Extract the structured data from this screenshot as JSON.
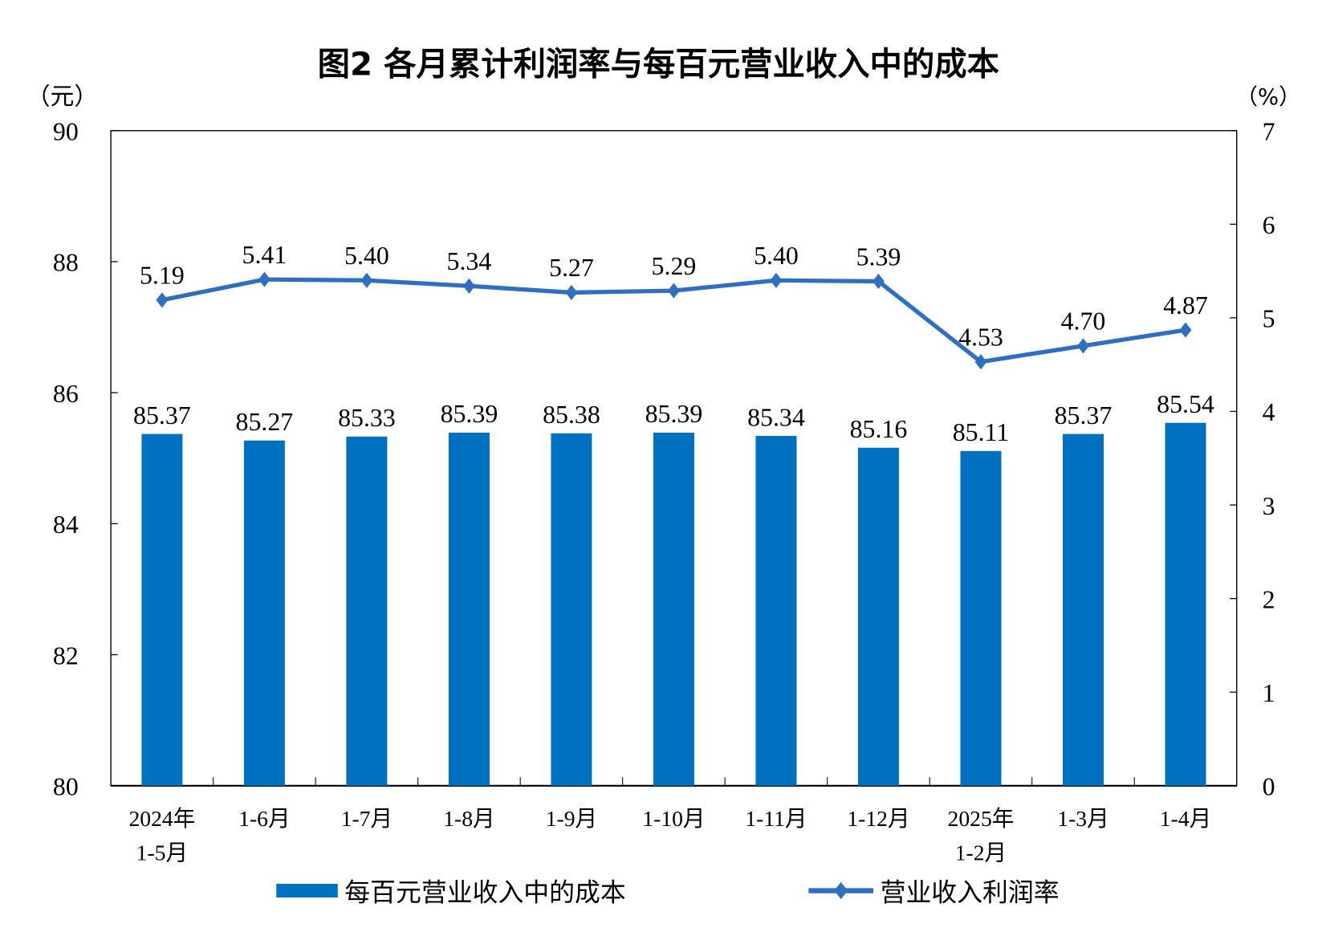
{
  "chart_data": {
    "type": "bar+line",
    "title": "图2  各月累计利润率与每百元营业收入中的成本",
    "left_axis": {
      "unit_label": "（元）",
      "ylim": [
        80,
        90
      ],
      "ticks": [
        "80",
        "82",
        "84",
        "86",
        "88",
        "90"
      ]
    },
    "right_axis": {
      "unit_label": "（%）",
      "ylim": [
        0,
        7
      ],
      "ticks": [
        "0",
        "1",
        "2",
        "3",
        "4",
        "5",
        "6",
        "7"
      ]
    },
    "categories": [
      [
        "2024年",
        "1-5月"
      ],
      [
        "1-6月"
      ],
      [
        "1-7月"
      ],
      [
        "1-8月"
      ],
      [
        "1-9月"
      ],
      [
        "1-10月"
      ],
      [
        "1-11月"
      ],
      [
        "1-12月"
      ],
      [
        "2025年",
        "1-2月"
      ],
      [
        "1-3月"
      ],
      [
        "1-4月"
      ]
    ],
    "series": [
      {
        "name": "每百元营业收入中的成本",
        "type": "bar",
        "axis": "left",
        "color": "#0070C0",
        "values": [
          85.37,
          85.27,
          85.33,
          85.39,
          85.38,
          85.39,
          85.34,
          85.16,
          85.11,
          85.37,
          85.54
        ],
        "labels": [
          "85.37",
          "85.27",
          "85.33",
          "85.39",
          "85.38",
          "85.39",
          "85.34",
          "85.16",
          "85.11",
          "85.37",
          "85.54"
        ]
      },
      {
        "name": "营业收入利润率",
        "type": "line",
        "axis": "right",
        "color": "#2E6FC0",
        "marker": "diamond",
        "values": [
          5.19,
          5.41,
          5.4,
          5.34,
          5.27,
          5.29,
          5.4,
          5.39,
          4.53,
          4.7,
          4.87
        ],
        "labels": [
          "5.19",
          "5.41",
          "5.40",
          "5.34",
          "5.27",
          "5.29",
          "5.40",
          "5.39",
          "4.53",
          "4.70",
          "4.87"
        ]
      }
    ],
    "legend": "bottom",
    "grid": false
  }
}
